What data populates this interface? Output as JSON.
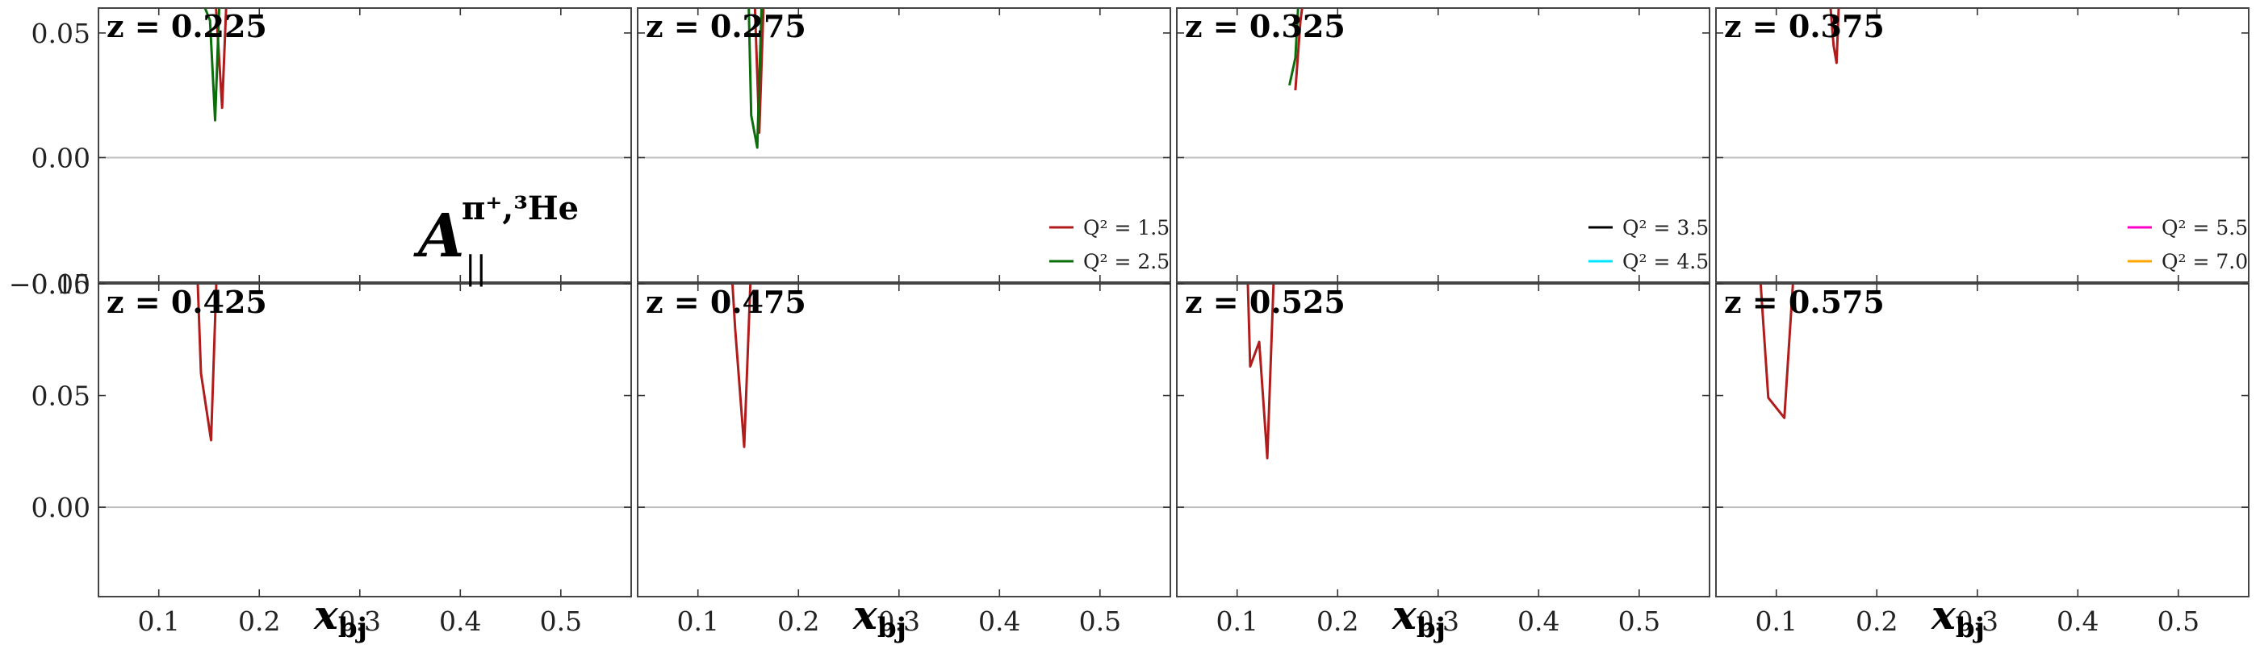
{
  "chart_data": {
    "type": "line",
    "xlabel_main": "x",
    "xlabel_sub": "bj",
    "ylabel_main": "A",
    "ylabel_sup": "π⁺,³He",
    "ylabel_sub": "||",
    "overlap_tick_label": "−0.05",
    "xlim": [
      0.04,
      0.57
    ],
    "ylim_top_row": [
      -0.05,
      0.06
    ],
    "ylim_bottom_row": [
      -0.04,
      0.1
    ],
    "x_ticks": [
      0.1,
      0.2,
      0.3,
      0.4,
      0.5
    ],
    "x_tick_labels": [
      "0.1",
      "0.2",
      "0.3",
      "0.4",
      "0.5"
    ],
    "y_ticks_top": [
      0.0,
      0.05
    ],
    "y_tick_labels_top": [
      "0.00",
      "0.05"
    ],
    "y_ticks_bottom": [
      0.0,
      0.05,
      0.1
    ],
    "y_tick_labels_bottom": [
      "0.00",
      "0.05",
      "0.10"
    ],
    "zero_line": true,
    "grid": false,
    "colors": {
      "Q2_1.5": "#b01c1c",
      "Q2_2.5": "#0a6e0a",
      "Q2_3.5": "#000000",
      "Q2_4.5": "#00e5ff",
      "Q2_5.5": "#ff00c8",
      "Q2_7.0": "#ffa500"
    },
    "legends": [
      {
        "panel": 1,
        "placement": "lower-right",
        "entries": [
          {
            "label": "Q² = 1.5",
            "color_key": "Q2_1.5"
          },
          {
            "label": "Q² = 2.5",
            "color_key": "Q2_2.5"
          }
        ]
      },
      {
        "panel": 2,
        "placement": "lower-right",
        "entries": [
          {
            "label": "Q² = 3.5",
            "color_key": "Q2_3.5"
          },
          {
            "label": "Q² = 4.5",
            "color_key": "Q2_4.5"
          }
        ]
      },
      {
        "panel": 3,
        "placement": "lower-right",
        "entries": [
          {
            "label": "Q² = 5.5",
            "color_key": "Q2_5.5"
          },
          {
            "label": "Q² = 7.0",
            "color_key": "Q2_7.0"
          }
        ]
      }
    ],
    "panels": [
      {
        "title": "z = 0.225",
        "row": 0,
        "series": [
          {
            "name": "Q² = 1.5",
            "color_key": "Q2_1.5",
            "x": [
              0.15,
              0.157,
              0.163,
              0.168
            ],
            "y": [
              0.08,
              0.06,
              0.02,
              0.07
            ]
          },
          {
            "name": "Q² = 2.5",
            "color_key": "Q2_2.5",
            "x": [
              0.146,
              0.151,
              0.156,
              0.161
            ],
            "y": [
              0.06,
              0.055,
              0.015,
              0.07
            ]
          }
        ]
      },
      {
        "title": "z = 0.275",
        "row": 0,
        "series": [
          {
            "name": "Q² = 1.5",
            "color_key": "Q2_1.5",
            "x": [
              0.155,
              0.161,
              0.166
            ],
            "y": [
              0.08,
              0.01,
              0.07
            ]
          },
          {
            "name": "Q² = 2.5",
            "color_key": "Q2_2.5",
            "x": [
              0.15,
              0.153,
              0.159,
              0.164
            ],
            "y": [
              0.07,
              0.017,
              0.004,
              0.07
            ]
          }
        ]
      },
      {
        "title": "z = 0.325",
        "row": 0,
        "series": [
          {
            "name": "Q² = 1.5",
            "color_key": "Q2_1.5",
            "x": [
              0.158,
              0.163,
              0.168
            ],
            "y": [
              0.027,
              0.055,
              0.07
            ]
          },
          {
            "name": "Q² = 2.5",
            "color_key": "Q2_2.5",
            "x": [
              0.152,
              0.158,
              0.162
            ],
            "y": [
              0.029,
              0.04,
              0.07
            ]
          }
        ]
      },
      {
        "title": "z = 0.375",
        "row": 0,
        "series": [
          {
            "name": "Q² = 1.5",
            "color_key": "Q2_1.5",
            "x": [
              0.15,
              0.157,
              0.16,
              0.163
            ],
            "y": [
              0.08,
              0.045,
              0.038,
              0.07
            ]
          }
        ]
      },
      {
        "title": "z = 0.425",
        "row": 1,
        "series": [
          {
            "name": "Q² = 1.5",
            "color_key": "Q2_1.5",
            "x": [
              0.138,
              0.142,
              0.152,
              0.158
            ],
            "y": [
              0.11,
              0.06,
              0.03,
              0.11
            ]
          }
        ]
      },
      {
        "title": "z = 0.475",
        "row": 1,
        "series": [
          {
            "name": "Q² = 1.5",
            "color_key": "Q2_1.5",
            "x": [
              0.133,
              0.137,
              0.146,
              0.153
            ],
            "y": [
              0.11,
              0.08,
              0.027,
              0.11
            ]
          }
        ]
      },
      {
        "title": "z = 0.525",
        "row": 1,
        "series": [
          {
            "name": "Q² = 1.5",
            "color_key": "Q2_1.5",
            "x": [
              0.11,
              0.113,
              0.122,
              0.13,
              0.137
            ],
            "y": [
              0.11,
              0.063,
              0.074,
              0.022,
              0.11
            ]
          }
        ]
      },
      {
        "title": "z = 0.575",
        "row": 1,
        "series": [
          {
            "name": "Q² = 1.5",
            "color_key": "Q2_1.5",
            "x": [
              0.083,
              0.092,
              0.108,
              0.118
            ],
            "y": [
              0.11,
              0.049,
              0.04,
              0.11
            ]
          }
        ]
      }
    ]
  }
}
